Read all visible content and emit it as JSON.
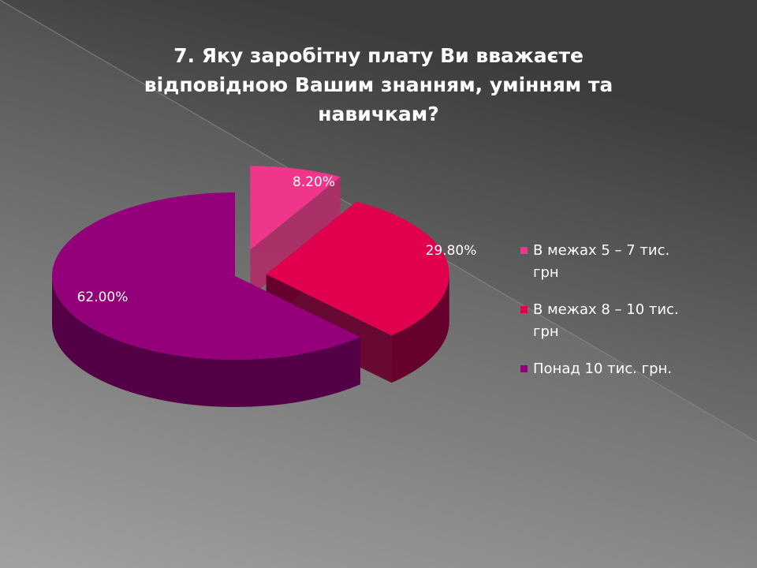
{
  "slide": {
    "title_lines": [
      "7. Яку заробітну плату Ви вважаєте",
      "відповідною Вашим знанням, умінням та",
      "навичкам?"
    ]
  },
  "chart_data": {
    "type": "pie",
    "style": "3d-exploded",
    "title": "7. Яку заробітну плату Ви вважаєте відповідною Вашим знанням, умінням та навичкам?",
    "legend_position": "right",
    "slices": [
      {
        "label": "В межах 5 – 7 тис. грн",
        "legend_lines": [
          "В межах 5 – 7 тис.",
          "грн"
        ],
        "value": 8.2,
        "value_label": "8.20%",
        "color": "#f0368a",
        "side_color": "#b02c68"
      },
      {
        "label": "В межах 8 – 10 тис. грн",
        "legend_lines": [
          "В межах 8 – 10 тис.",
          "грн"
        ],
        "value": 29.8,
        "value_label": "29.80%",
        "color": "#e0004e",
        "side_color": "#66002d"
      },
      {
        "label": "Понад 10 тис. грн.",
        "legend_lines": [
          "Понад 10 тис. грн."
        ],
        "value": 62.0,
        "value_label": "62.00%",
        "color": "#93007a",
        "side_color": "#540046"
      }
    ]
  },
  "theme": {
    "bg_light": "#9a9a9a",
    "bg_dark": "#3a3a3a",
    "text_color": "#ffffff"
  }
}
